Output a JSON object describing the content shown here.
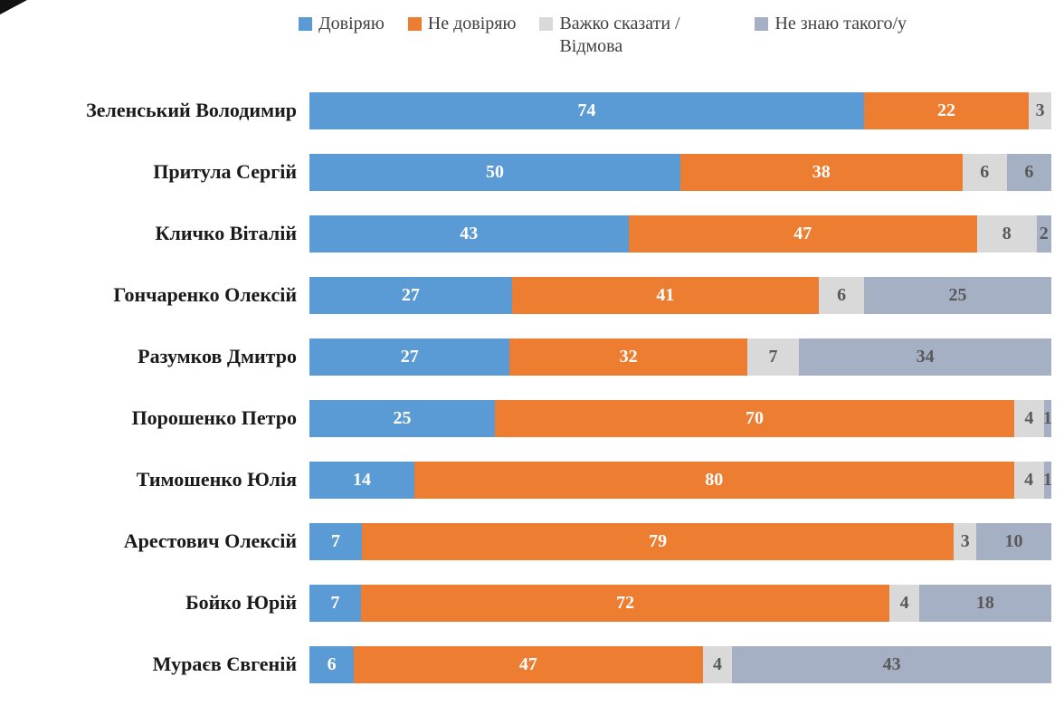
{
  "decoration": {
    "corner_tear": "black-triangle-top-left"
  },
  "legend_note": "legend built from chart_data.series",
  "chart_data": {
    "type": "bar",
    "subtype": "horizontal-stacked",
    "title": "",
    "xlabel": "",
    "ylabel": "",
    "xlim": [
      0,
      100
    ],
    "grid": false,
    "legend_position": "top",
    "categories": [
      "Зеленський Володимир",
      "Притула Сергій",
      "Кличко Віталій",
      "Гончаренко Олексій",
      "Разумков Дмитро",
      "Порошенко Петро",
      "Тимошенко Юлія",
      "Арестович Олексій",
      "Бойко Юрій",
      "Мураєв Євгеній"
    ],
    "series": [
      {
        "key": "trust",
        "name": "Довіряю",
        "color": "#5B9BD5",
        "label_color": "#ffffff",
        "values": [
          74,
          50,
          43,
          27,
          27,
          25,
          14,
          7,
          7,
          6
        ]
      },
      {
        "key": "distrust",
        "name": "Не довіряю",
        "color": "#ED7D31",
        "label_color": "#ffffff",
        "values": [
          22,
          38,
          47,
          41,
          32,
          70,
          80,
          79,
          72,
          47
        ]
      },
      {
        "key": "hard-to-say",
        "name": "Важко сказати / Відмова",
        "color": "#D9D9D9",
        "label_color": "#595959",
        "values": [
          3,
          6,
          8,
          6,
          7,
          4,
          4,
          3,
          4,
          4
        ]
      },
      {
        "key": "dont-know",
        "name": "Не знаю такого/у",
        "color": "#A6B0C4",
        "label_color": "#595959",
        "values": [
          0,
          6,
          2,
          25,
          34,
          1,
          1,
          10,
          18,
          43
        ]
      }
    ]
  }
}
